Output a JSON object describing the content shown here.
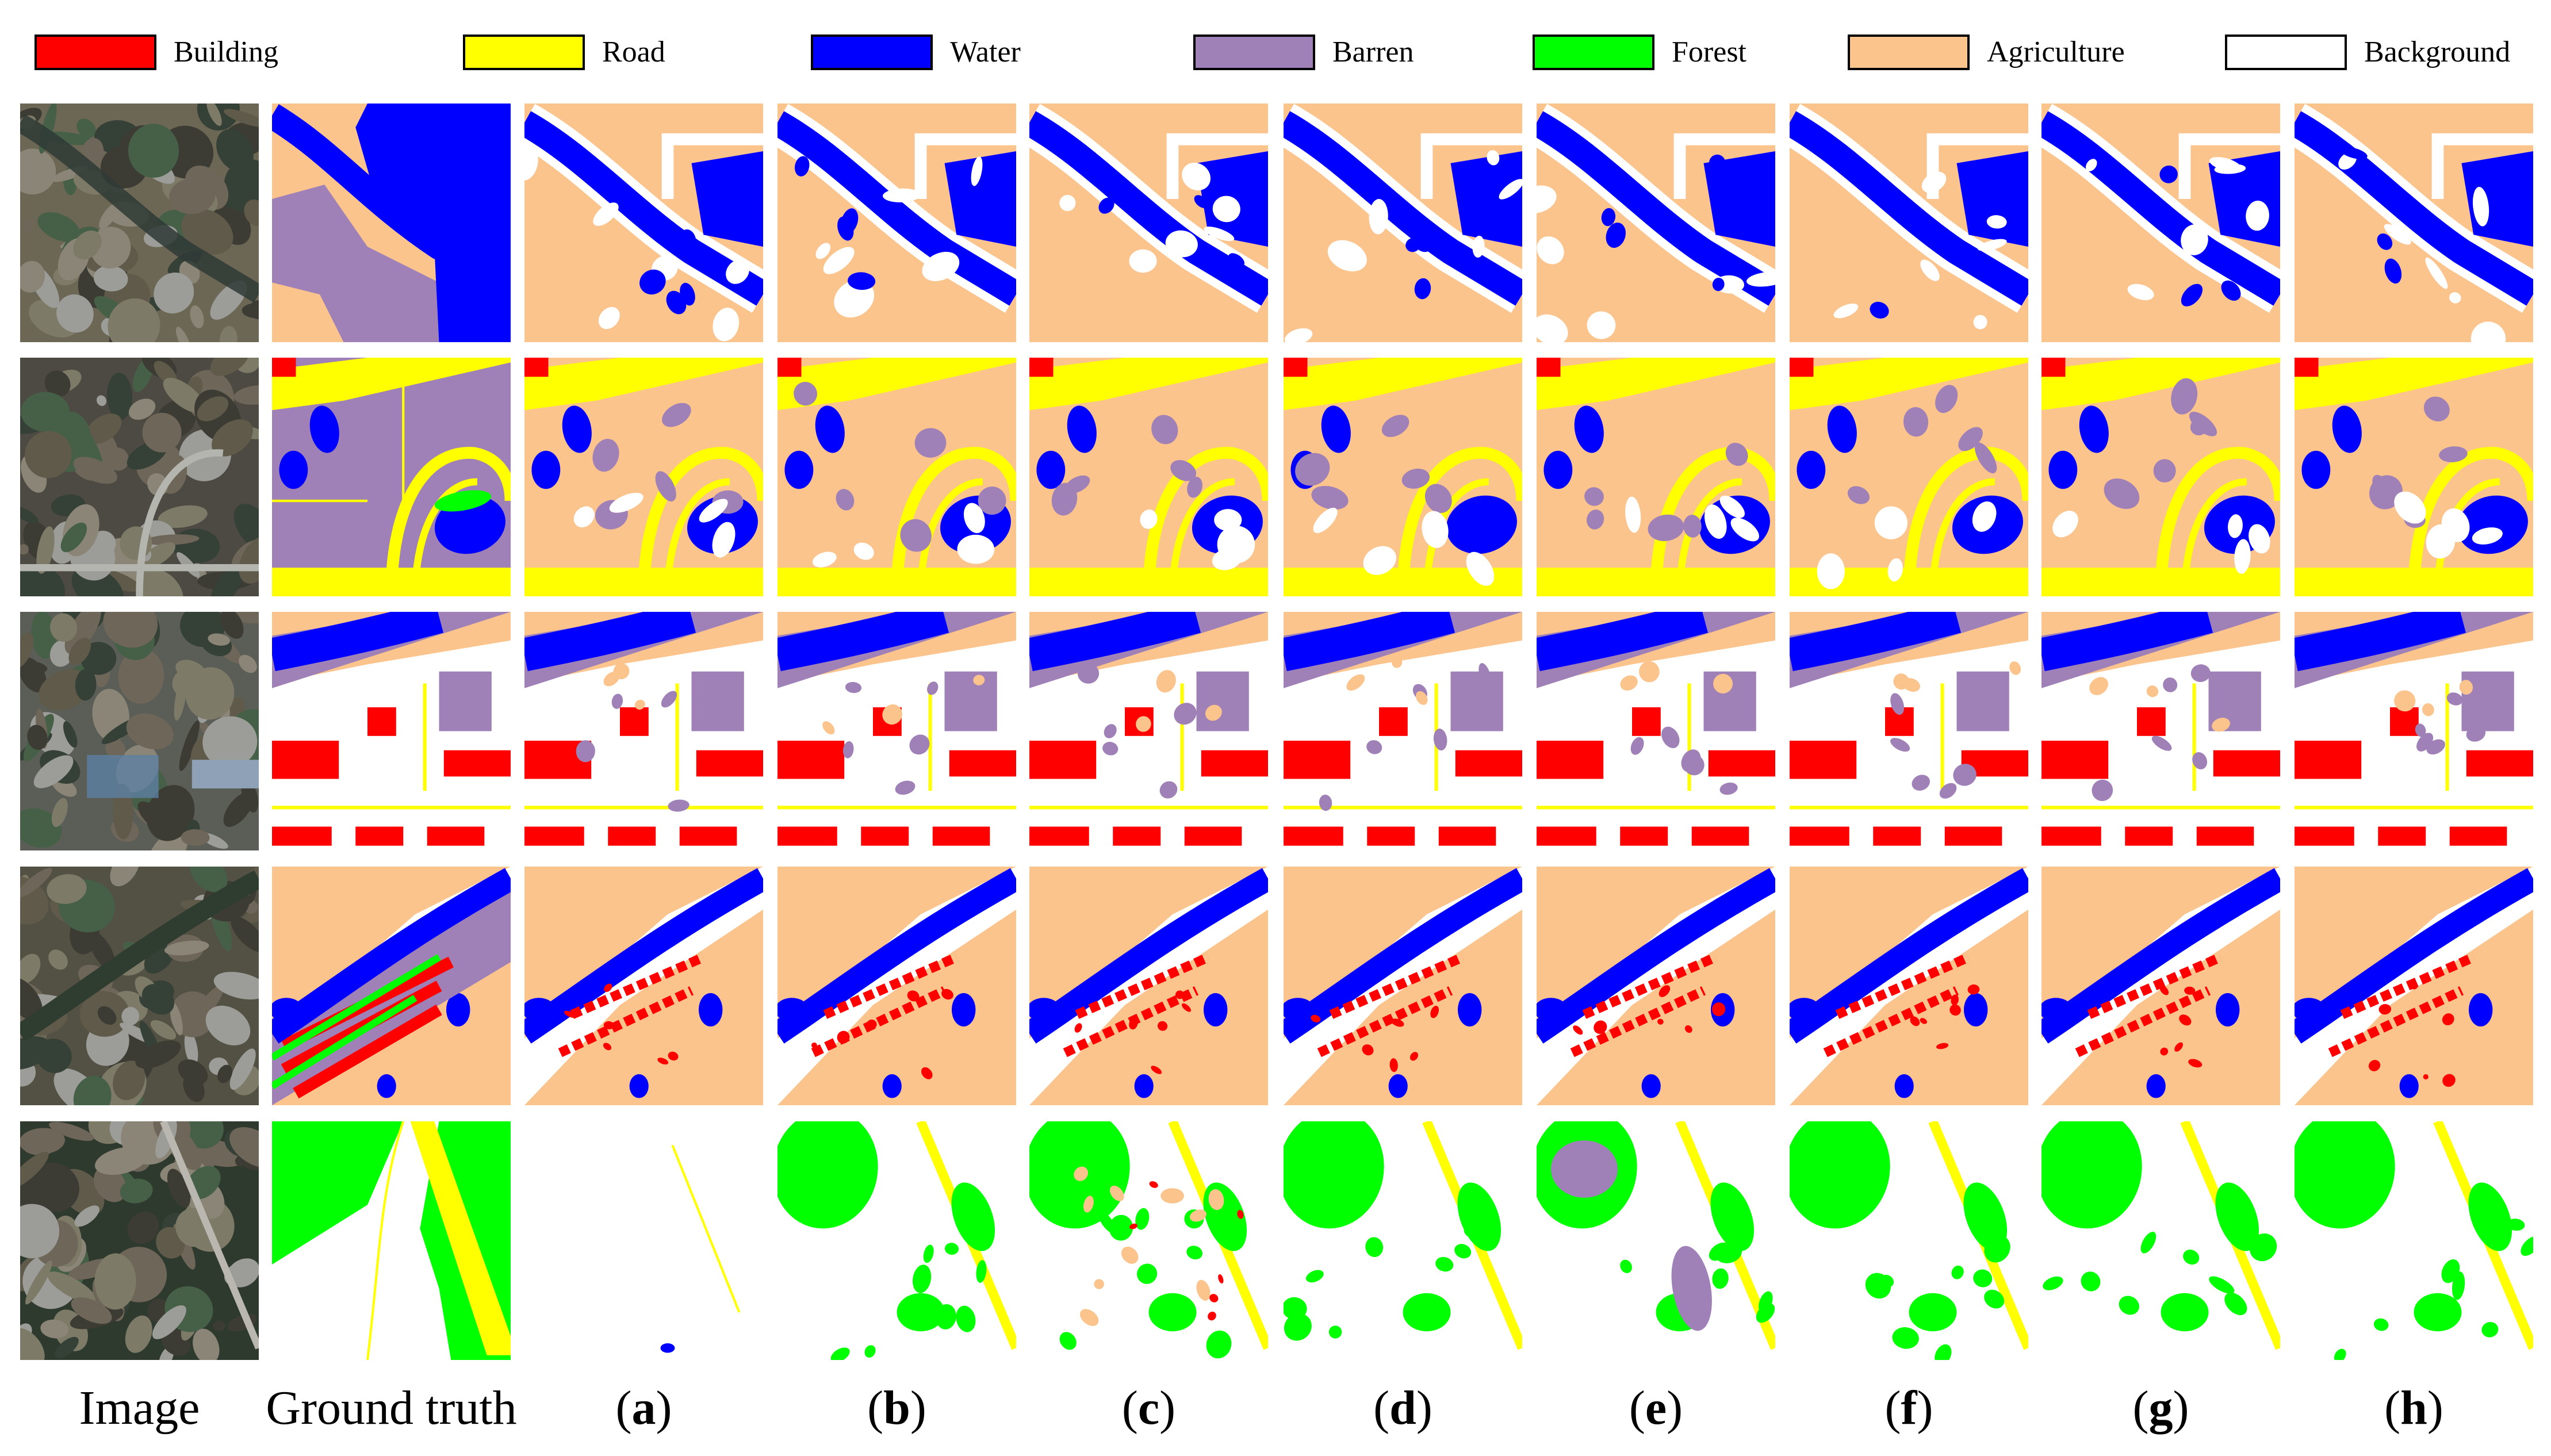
{
  "legend": [
    {
      "label": "Building",
      "color": "#ff0000"
    },
    {
      "label": "Road",
      "color": "#ffff00"
    },
    {
      "label": "Water",
      "color": "#0000ff"
    },
    {
      "label": "Barren",
      "color": "#9f81b7"
    },
    {
      "label": "Forest",
      "color": "#00ff00"
    },
    {
      "label": "Agriculture",
      "color": "#fbc48c"
    },
    {
      "label": "Background",
      "color": "#ffffff"
    }
  ],
  "columns": [
    {
      "caption": "Image",
      "kind": "photo"
    },
    {
      "caption": "Ground truth",
      "kind": "truth"
    },
    {
      "caption": "a",
      "kind": "pred"
    },
    {
      "caption": "b",
      "kind": "pred"
    },
    {
      "caption": "c",
      "kind": "pred"
    },
    {
      "caption": "d",
      "kind": "pred"
    },
    {
      "caption": "e",
      "kind": "pred"
    },
    {
      "caption": "f",
      "kind": "pred"
    },
    {
      "caption": "g",
      "kind": "pred"
    },
    {
      "caption": "h",
      "kind": "pred"
    }
  ],
  "rows": [
    {
      "scene": "river"
    },
    {
      "scene": "interchange"
    },
    {
      "scene": "factory"
    },
    {
      "scene": "village"
    },
    {
      "scene": "forest-road"
    }
  ]
}
